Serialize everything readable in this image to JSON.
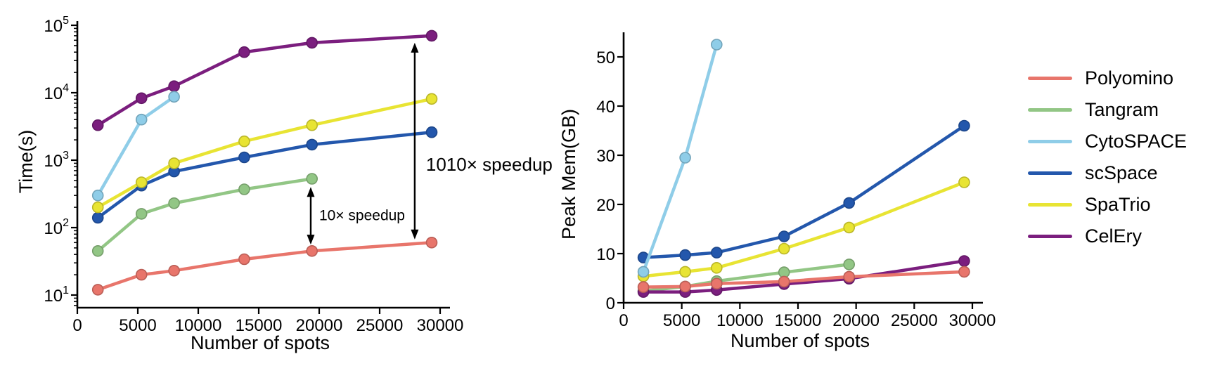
{
  "figure": {
    "background": "#ffffff",
    "axis_color": "#000000"
  },
  "chart_data": [
    {
      "type": "line",
      "title": "",
      "xlabel": "Number of spots",
      "ylabel": "Time(s)",
      "yscale": "log",
      "xlim": [
        0,
        30800
      ],
      "ylim": [
        10,
        100000
      ],
      "xticks": [
        0,
        5000,
        10000,
        15000,
        20000,
        25000,
        30000
      ],
      "yticks": [
        10,
        100,
        1000,
        10000,
        100000
      ],
      "grid": false,
      "legend_position": "outside-right",
      "x": [
        1700,
        5300,
        8000,
        13800,
        19400,
        29300
      ],
      "series": [
        {
          "name": "Polyomino",
          "color": "#E8756B",
          "values": [
            12,
            20,
            23,
            34,
            45,
            60
          ]
        },
        {
          "name": "Tangram",
          "color": "#92C685",
          "values": [
            45,
            160,
            230,
            370,
            530
          ]
        },
        {
          "name": "CytoSPACE",
          "color": "#8FCDE8",
          "values": [
            300,
            4000,
            8700
          ]
        },
        {
          "name": "scSpace",
          "color": "#2357AC",
          "values": [
            140,
            420,
            680,
            1100,
            1700,
            2600
          ]
        },
        {
          "name": "SpaTrio",
          "color": "#E8E433",
          "values": [
            200,
            470,
            900,
            1900,
            3300,
            8100
          ]
        },
        {
          "name": "CelEry",
          "color": "#7B1E7E",
          "values": [
            3300,
            8300,
            12500,
            40000,
            55000,
            70000
          ]
        }
      ],
      "annotations": [
        {
          "text": "1010× speedup",
          "style": "double-arrow",
          "x": 27900,
          "y_from": 55000,
          "y_to": 67,
          "label_dx": 16,
          "label_y": 700,
          "font_size": 26
        },
        {
          "text": "10× speedup",
          "style": "double-arrow",
          "x": 19300,
          "y_from": 400,
          "y_to": 56,
          "label_dx": 12,
          "label_y": 128,
          "font_size": 21
        }
      ]
    },
    {
      "type": "line",
      "title": "",
      "xlabel": "Number of spots",
      "ylabel": "Peak Mem(GB)",
      "yscale": "linear",
      "xlim": [
        0,
        30900
      ],
      "ylim": [
        0,
        55
      ],
      "xticks": [
        0,
        5000,
        10000,
        15000,
        20000,
        25000,
        30000
      ],
      "yticks": [
        0,
        10,
        20,
        30,
        40,
        50
      ],
      "grid": false,
      "x": [
        1700,
        5300,
        8000,
        13800,
        19400,
        29300
      ],
      "series": [
        {
          "name": "Polyomino",
          "color": "#E8756B",
          "values": [
            3.2,
            3.3,
            3.9,
            4.3,
            5.3,
            6.3
          ]
        },
        {
          "name": "Tangram",
          "color": "#92C685",
          "values": [
            2.4,
            3.3,
            4.4,
            6.2,
            7.8
          ]
        },
        {
          "name": "CytoSPACE",
          "color": "#8FCDE8",
          "values": [
            6.3,
            29.5,
            52.5
          ]
        },
        {
          "name": "scSpace",
          "color": "#2357AC",
          "values": [
            9.2,
            9.7,
            10.2,
            13.5,
            20.3,
            36.0
          ]
        },
        {
          "name": "SpaTrio",
          "color": "#E8E433",
          "values": [
            5.4,
            6.3,
            7.1,
            11.0,
            15.3,
            24.5
          ]
        },
        {
          "name": "CelEry",
          "color": "#7B1E7E",
          "values": [
            2.2,
            2.2,
            2.6,
            3.8,
            4.9,
            8.5
          ]
        }
      ],
      "annotations": []
    }
  ]
}
